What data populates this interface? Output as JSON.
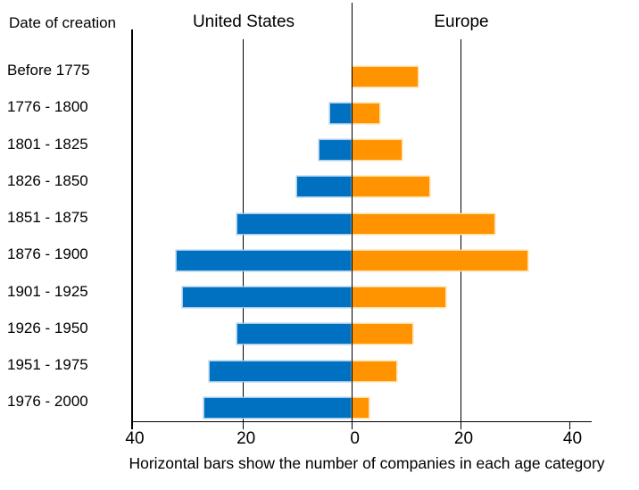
{
  "page": {
    "corner_label": "Date of creation",
    "left_header": "United States",
    "right_header": "Europe",
    "caption": "Horizontal bars show the number of companies in each age category"
  },
  "colors": {
    "us_bar": "#0070C0",
    "us_bar_edge": "#9BC8EB",
    "europe_bar": "#FF9300",
    "europe_bar_edge": "#FFDBA0",
    "axis_line": "#000000"
  },
  "chart_data": {
    "type": "bar",
    "variant": "diverging-horizontal",
    "title": "Date of creation",
    "caption": "Horizontal bars show the number of companies in each age category",
    "categories": [
      "Before 1775",
      "1776 - 1800",
      "1801 - 1825",
      "1826 - 1850",
      "1851 - 1875",
      "1876 - 1900",
      "1901 - 1925",
      "1926 - 1950",
      "1951 - 1975",
      "1976 - 2000"
    ],
    "series": [
      {
        "name": "United States",
        "side": "left",
        "color": "#0070C0",
        "values": [
          0,
          4,
          6,
          10,
          21,
          32,
          31,
          21,
          26,
          27
        ]
      },
      {
        "name": "Europe",
        "side": "right",
        "color": "#FF9300",
        "values": [
          12,
          5,
          9,
          14,
          26,
          32,
          17,
          11,
          8,
          3
        ]
      }
    ],
    "x_axis": {
      "tick_labels": [
        "40",
        "20",
        "0",
        "20",
        "40"
      ],
      "tick_values": [
        40,
        20,
        0,
        20,
        40
      ],
      "range_each_side": [
        0,
        42
      ],
      "gridlines": "vertical at 40-left, 20-left, 0, 20-right"
    },
    "ylabel": "Date of creation",
    "legend_position": "column headers above chart"
  }
}
